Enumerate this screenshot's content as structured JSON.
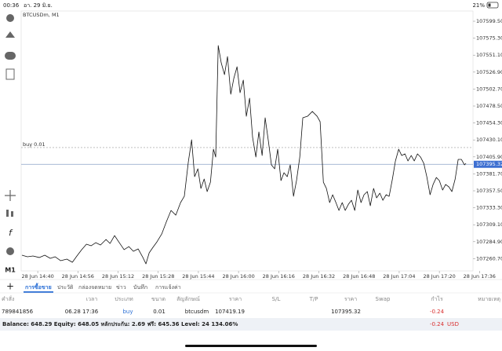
{
  "status_bar": {
    "time": "00:36",
    "date": "อา. 29 มิ.ย.",
    "battery": "21%"
  },
  "toolbar": {
    "timeframe": "M1"
  },
  "chart_data": {
    "type": "line",
    "title": "BTCUSDm, M1",
    "color": "#111111",
    "x": [
      -6.3,
      -4.1,
      -1.9,
      0.6,
      2.8,
      5,
      6.9,
      9.1,
      11.6,
      13.8,
      15.6,
      17.5,
      19.4,
      21.3,
      23.1,
      25,
      27.2,
      28.8,
      30.6,
      32.5,
      34.4,
      36.3,
      38.1,
      40,
      41.9,
      43.1,
      44.4,
      45.9,
      47.5,
      49.4,
      51.3,
      53.1,
      55,
      56.9,
      58.4,
      60,
      61.3,
      62.5,
      63.8,
      65,
      66.3,
      67.5,
      68.8,
      70,
      70.9,
      71.9,
      73.1,
      74.4,
      75.6,
      76.9,
      78.1,
      79.4,
      80.6,
      81.9,
      83.1,
      84.4,
      85.6,
      86.9,
      88.1,
      89.4,
      90.6,
      91.9,
      93.1,
      94.4,
      95.6,
      96.9,
      98.1,
      99.4,
      100.6,
      101.9,
      103.1,
      104.4,
      105.6,
      107.5,
      109.4,
      111.3,
      112.5,
      113.8,
      115,
      116.3,
      117.5,
      118.8,
      120,
      121.3,
      122.5,
      123.8,
      125,
      126.3,
      127.5,
      128.8,
      130,
      131.3,
      132.5,
      133.8,
      135,
      136.3,
      137.5,
      138.8,
      140,
      141.3,
      142.5,
      143.8,
      145,
      146.3,
      147.5,
      148.8,
      150,
      151.3,
      152.5,
      153.8,
      155,
      156.3,
      157.5,
      158.8,
      160,
      161.3,
      162.5,
      163.8,
      165,
      166.3,
      167.5,
      168.8,
      170,
      170.6
    ],
    "values": [
      107265.6,
      107263.4,
      107264.5,
      107262.3,
      107265.6,
      107261.1,
      107263.4,
      107257.8,
      107260.0,
      107255.5,
      107264.5,
      107273.5,
      107281.3,
      107279.1,
      107283.5,
      107280.2,
      107288.0,
      107282.4,
      107293.6,
      107283.5,
      107273.5,
      107277.9,
      107271.2,
      107274.6,
      107262.3,
      107253.3,
      107269.0,
      107276.8,
      107284.7,
      107295.9,
      107313.8,
      107329.5,
      107322.8,
      107340.7,
      107349.7,
      107398.9,
      107430.3,
      107377.7,
      107388.9,
      107360.9,
      107374.3,
      107356.4,
      107369.8,
      107416.9,
      107405.7,
      107564.8,
      107540.1,
      107523.3,
      107549.1,
      107495.3,
      107517.7,
      107534.5,
      107497.5,
      107515.5,
      107463.9,
      107489.7,
      107433.7,
      107405.7,
      107441.5,
      107407.9,
      107461.7,
      107428.1,
      107394.5,
      107388.9,
      107416.9,
      107372.1,
      107383.3,
      107377.7,
      107394.5,
      107349.7,
      107372.1,
      107405.7,
      107461.7,
      107463.9,
      107470.7,
      107463.9,
      107456.1,
      107369.8,
      107360.9,
      107340.7,
      107351.9,
      107340.7,
      107329.5,
      107340.7,
      107329.5,
      107338.4,
      107344.0,
      107329.5,
      107358.6,
      107340.7,
      107351.9,
      107356.4,
      107336.2,
      107360.9,
      107347.4,
      107354.1,
      107344.0,
      107351.9,
      107349.7,
      107374.3,
      107400.1,
      107416.9,
      107407.9,
      107410.2,
      107400.1,
      107407.9,
      107400.1,
      107410.2,
      107405.7,
      107396.7,
      107377.7,
      107351.9,
      107366.5,
      107376.5,
      107372.1,
      107358.6,
      107366.5,
      107363.1,
      107356.4,
      107374.3,
      107402.3,
      107402.3,
      107394.5,
      107396.7
    ],
    "xlim": [
      -6.6,
      173.4
    ],
    "ylim": [
      107243.2,
      107614.1
    ],
    "xticks": [
      {
        "value": 0,
        "label": "28 Jun 14:40"
      },
      {
        "value": 16,
        "label": "28 Jun 14:56"
      },
      {
        "value": 32,
        "label": "28 Jun 15:12"
      },
      {
        "value": 48,
        "label": "28 Jun 15:28"
      },
      {
        "value": 64,
        "label": "28 Jun 15:44"
      },
      {
        "value": 80,
        "label": "28 Jun 16:00"
      },
      {
        "value": 96,
        "label": "28 Jun 16:16"
      },
      {
        "value": 112,
        "label": "28 Jun 16:32"
      },
      {
        "value": 128,
        "label": "28 Jun 16:48"
      },
      {
        "value": 144,
        "label": "28 Jun 17:04"
      },
      {
        "value": 160,
        "label": "28 Jun 17:20"
      },
      {
        "value": 176,
        "label": "28 Jun 17:36"
      }
    ],
    "yticks": [
      {
        "value": 107599.5,
        "label": "107599.50"
      },
      {
        "value": 107575.3,
        "label": "107575.30"
      },
      {
        "value": 107551.1,
        "label": "107551.10"
      },
      {
        "value": 107526.9,
        "label": "107526.90"
      },
      {
        "value": 107502.7,
        "label": "107502.70"
      },
      {
        "value": 107478.5,
        "label": "107478.50"
      },
      {
        "value": 107454.3,
        "label": "107454.30"
      },
      {
        "value": 107430.1,
        "label": "107430.10"
      },
      {
        "value": 107405.9,
        "label": "107405.90"
      },
      {
        "value": 107381.7,
        "label": "107381.70"
      },
      {
        "value": 107357.5,
        "label": "107357.50"
      },
      {
        "value": 107333.3,
        "label": "107333.30"
      },
      {
        "value": 107309.1,
        "label": "107309.10"
      },
      {
        "value": 107284.9,
        "label": "107284.90"
      },
      {
        "value": 107260.7,
        "label": "107260.70"
      }
    ],
    "price_line": 107395.32,
    "order_line": {
      "label": "buy 0.01",
      "value": 107419.19
    }
  },
  "tabs": [
    "การซื้อขาย",
    "ประวัติ",
    "กล่องจดหมาย",
    "ข่าว",
    "บันทึก",
    "การแจ้งค่า"
  ],
  "table": {
    "headers": [
      "คำสั่ง",
      "เวลา",
      "ประเภท",
      "ขนาด",
      "สัญลักษณ์",
      "ราคา",
      "S/L",
      "T/P",
      "ราคา",
      "Swap",
      "กำไร",
      "หมายเหตุ"
    ],
    "row": {
      "order": "789841856",
      "time": "06.28 17:36",
      "type": "buy",
      "volume": "0.01",
      "symbol": "btcusdm",
      "open_price": "107419.19",
      "price": "107395.32",
      "profit": "-0.24"
    }
  },
  "balance": {
    "summary": "Balance: 648.29 Equity: 648.05 หลักประกัน: 2.69 ฟรี: 645.36 Level: 24 134.06%",
    "profit": "-0.24",
    "currency": "USD"
  }
}
